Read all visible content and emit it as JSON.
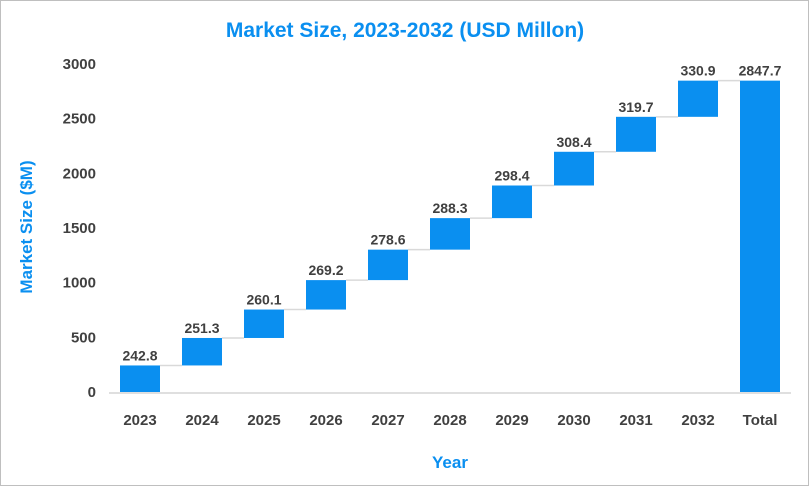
{
  "chart_data": {
    "type": "waterfall",
    "title": "Market Size, 2023-2032 (USD Millon)",
    "xlabel": "Year",
    "ylabel": "Market Size ($M)",
    "ylim": [
      0,
      3000
    ],
    "yticks": [
      0,
      500,
      1000,
      1500,
      2000,
      2500,
      3000
    ],
    "categories": [
      "2023",
      "2024",
      "2025",
      "2026",
      "2027",
      "2028",
      "2029",
      "2030",
      "2031",
      "2032",
      "Total"
    ],
    "values": [
      242.8,
      251.3,
      260.1,
      269.2,
      278.6,
      288.3,
      298.4,
      308.4,
      319.7,
      330.9,
      2847.7
    ],
    "data_labels": [
      "242.8",
      "251.3",
      "260.1",
      "269.2",
      "278.6",
      "288.3",
      "298.4",
      "308.4",
      "319.7",
      "330.9",
      "2847.7"
    ],
    "total_category": "Total",
    "grid": false,
    "legend": "none",
    "colors": {
      "bar": "#0A8FF0",
      "title": "#0A8FF0",
      "axis_title": "#0A8FF0",
      "connector": "#d9d9d9",
      "axis_line": "#bfbfbf",
      "text": "#404040"
    }
  }
}
